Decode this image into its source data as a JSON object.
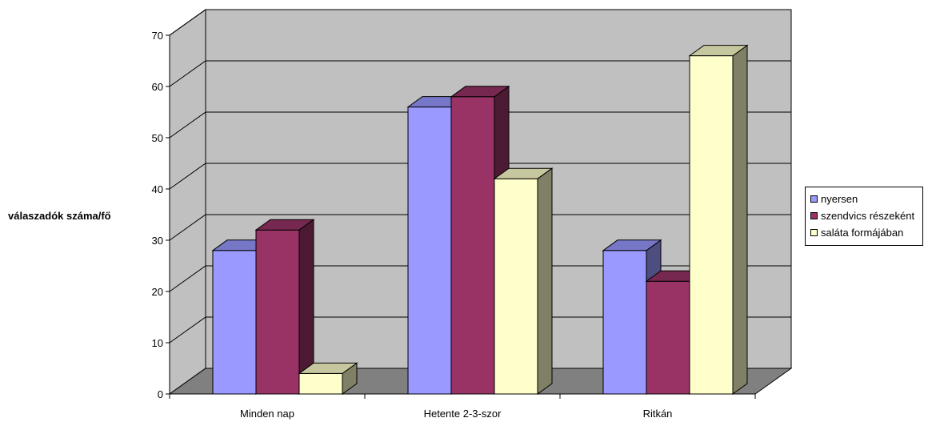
{
  "chart_data": {
    "type": "bar",
    "title": "",
    "xlabel": "",
    "ylabel": "válaszadók száma/fő",
    "ylim": [
      0,
      70
    ],
    "yticks": [
      0,
      10,
      20,
      30,
      40,
      50,
      60,
      70
    ],
    "grid": true,
    "legend_position": "right",
    "categories": [
      "Minden nap",
      "Hetente 2-3-szor",
      "Ritkán"
    ],
    "series": [
      {
        "name": "nyersen",
        "values": [
          28,
          56,
          28
        ],
        "color": "#9999ff"
      },
      {
        "name": "szendvics részeként",
        "values": [
          32,
          58,
          22
        ],
        "color": "#993366"
      },
      {
        "name": "saláta formájában",
        "values": [
          4,
          42,
          66
        ],
        "color": "#ffffcc"
      }
    ]
  },
  "colors": {
    "wall": "#c0c0c0",
    "floor": "#808080",
    "side_wall": "#c0c0c0"
  }
}
